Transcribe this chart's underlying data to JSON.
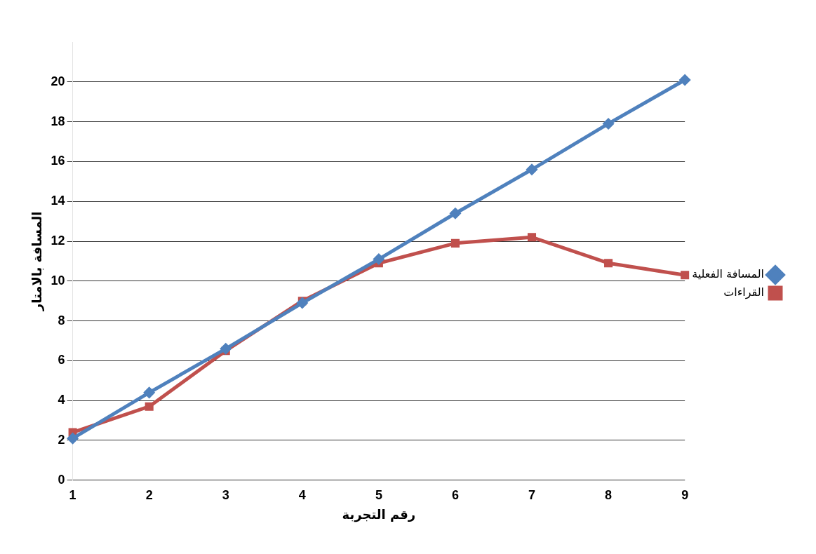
{
  "chart_data": {
    "type": "line",
    "xlabel": "رقم التجربة",
    "ylabel": "المسافة بالامتار",
    "categories": [
      "1",
      "2",
      "3",
      "4",
      "5",
      "6",
      "7",
      "8",
      "9"
    ],
    "series": [
      {
        "name": "المسافة الفعلية",
        "color": "#4f81bd",
        "marker": "diamond",
        "values": [
          2.1,
          4.4,
          6.6,
          8.9,
          11.1,
          13.4,
          15.6,
          17.9,
          20.1
        ]
      },
      {
        "name": "القراءات",
        "color": "#c0504d",
        "marker": "square",
        "values": [
          2.4,
          3.7,
          6.5,
          9.0,
          10.9,
          11.9,
          12.2,
          10.9,
          10.3
        ]
      }
    ],
    "ylim": [
      0,
      22
    ],
    "yticks": [
      0,
      2,
      4,
      6,
      8,
      10,
      12,
      14,
      16,
      18,
      20
    ],
    "grid": "y",
    "legend": "right"
  }
}
